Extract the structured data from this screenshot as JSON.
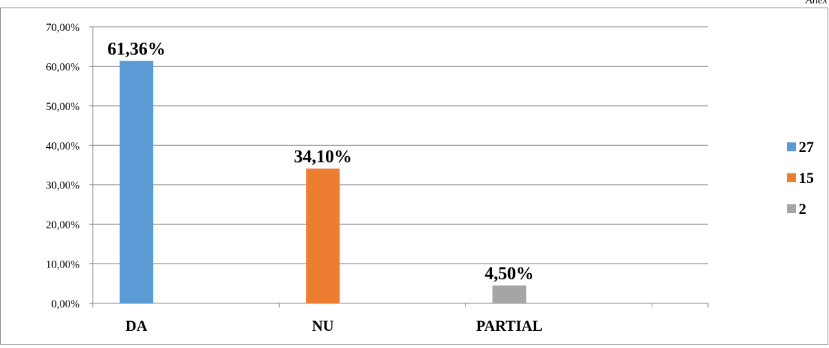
{
  "corner_label": "Anex",
  "chart_data": {
    "type": "bar",
    "categories": [
      "DA",
      "NU",
      "PARTIAL"
    ],
    "series": [
      {
        "name": "27",
        "values": [
          61.36,
          null,
          null
        ],
        "color": "#5b9bd5"
      },
      {
        "name": "15",
        "values": [
          null,
          34.1,
          null
        ],
        "color": "#ed7d31"
      },
      {
        "name": "2",
        "values": [
          null,
          null,
          4.5
        ],
        "color": "#a5a5a5"
      }
    ],
    "data_labels": [
      "61,36%",
      "34,10%",
      "4,50%"
    ],
    "y_ticks": [
      "0,00%",
      "10,00%",
      "20,00%",
      "30,00%",
      "40,00%",
      "50,00%",
      "60,00%",
      "70,00%"
    ],
    "ylim": [
      0,
      70
    ],
    "grid": true,
    "legend_position": "right",
    "title": "",
    "xlabel": "",
    "ylabel": ""
  }
}
